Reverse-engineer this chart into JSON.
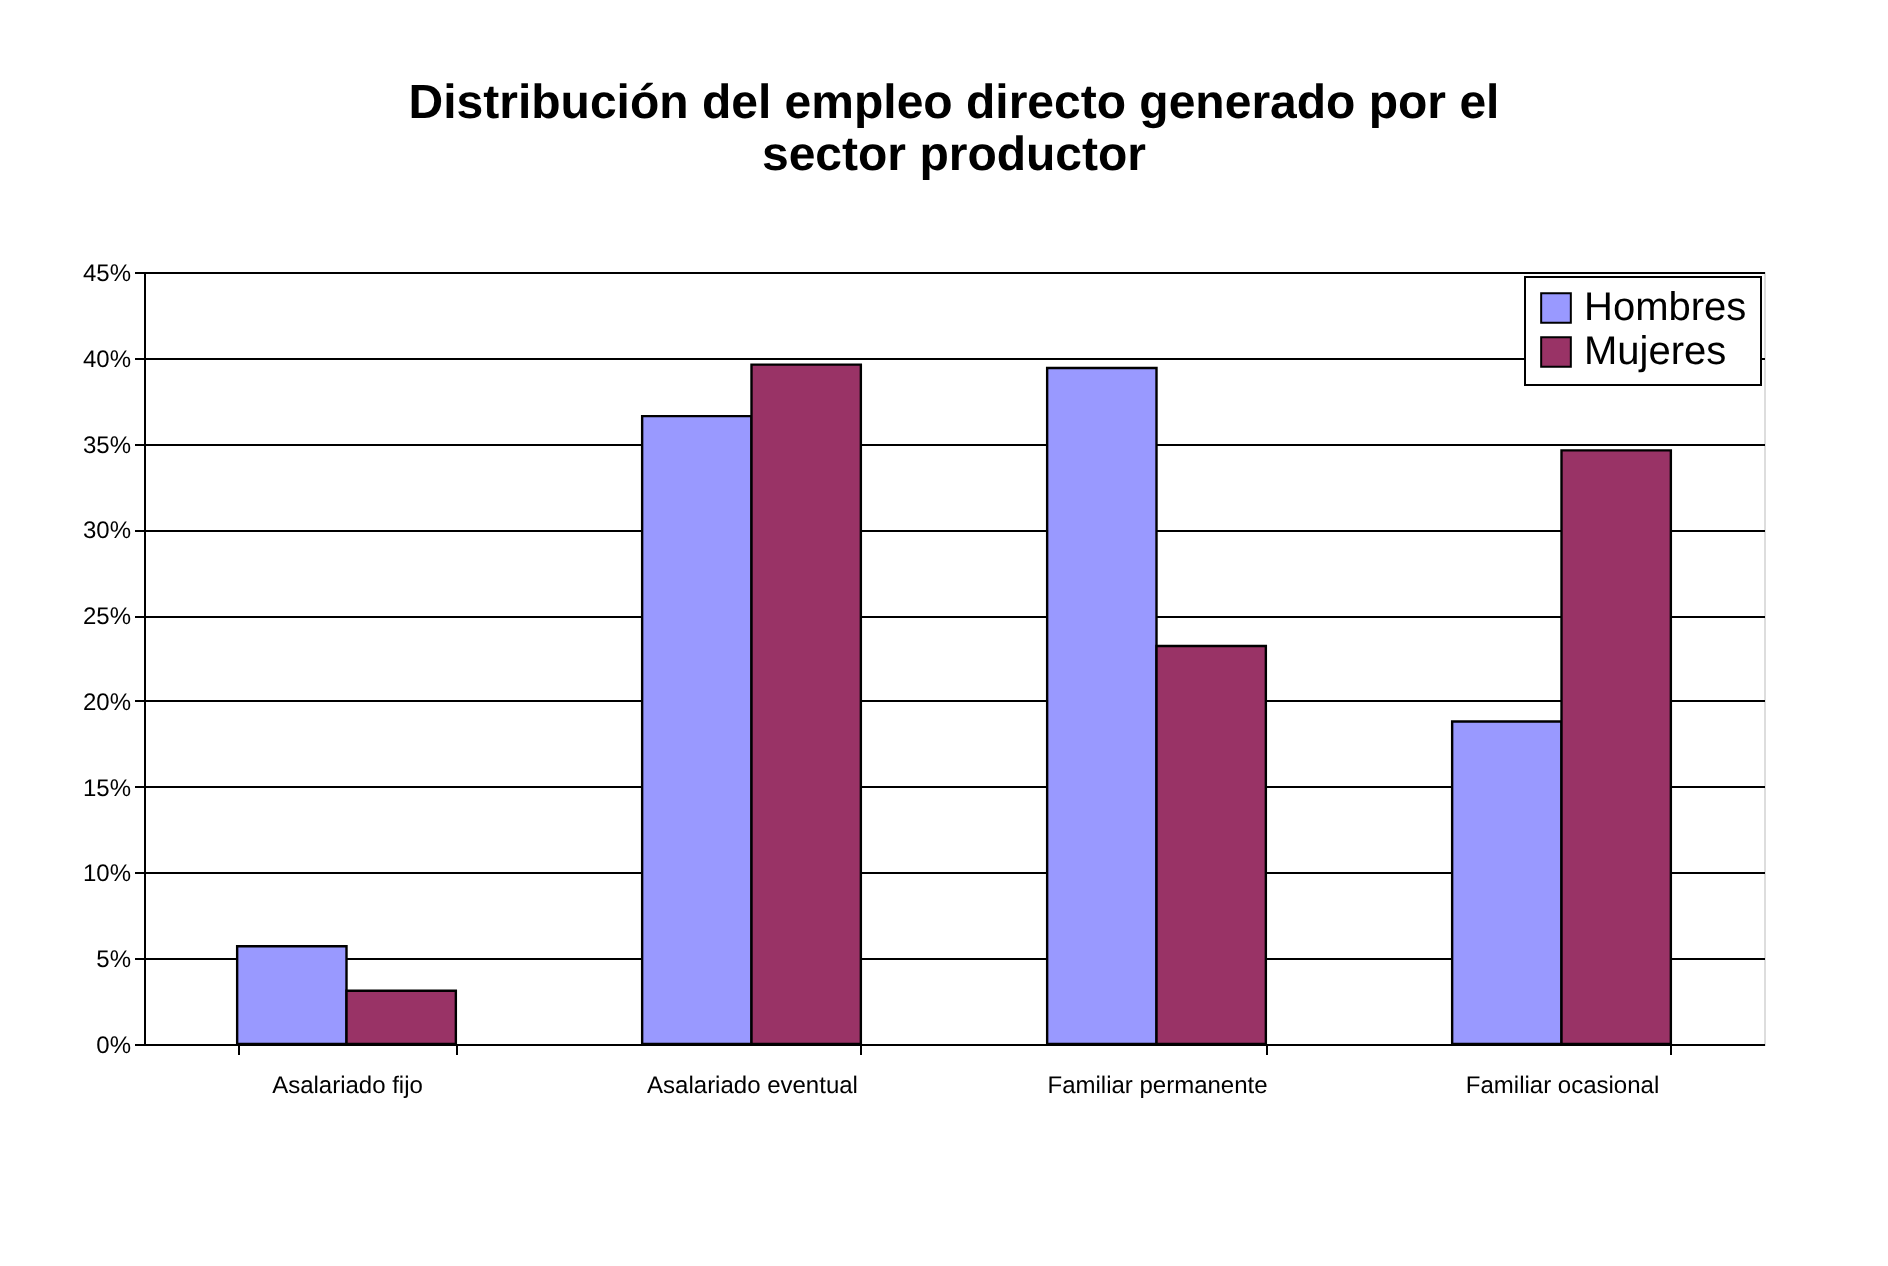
{
  "chart_data": {
    "type": "bar",
    "title": "Distribución del empleo directo generado por el sector productor",
    "categories": [
      "Asalariado fijo",
      "Asalariado eventual",
      "Familiar permanente",
      "Familiar ocasional"
    ],
    "series": [
      {
        "name": "Hombres",
        "color": "#9999ff",
        "values": [
          5.7,
          36.6,
          39.4,
          18.8
        ]
      },
      {
        "name": "Mujeres",
        "color": "#993366",
        "values": [
          3.1,
          39.6,
          23.2,
          34.6
        ]
      }
    ],
    "ylim": [
      0,
      45
    ],
    "yticks": [
      {
        "value": 0,
        "label": "0%"
      },
      {
        "value": 5,
        "label": "5%"
      },
      {
        "value": 10,
        "label": "10%"
      },
      {
        "value": 15,
        "label": "15%"
      },
      {
        "value": 20,
        "label": "20%"
      },
      {
        "value": 25,
        "label": "25%"
      },
      {
        "value": 30,
        "label": "30%"
      },
      {
        "value": 35,
        "label": "35%"
      },
      {
        "value": 40,
        "label": "40%"
      },
      {
        "value": 45,
        "label": "45%"
      }
    ],
    "grid": "y",
    "legend": "top right"
  }
}
